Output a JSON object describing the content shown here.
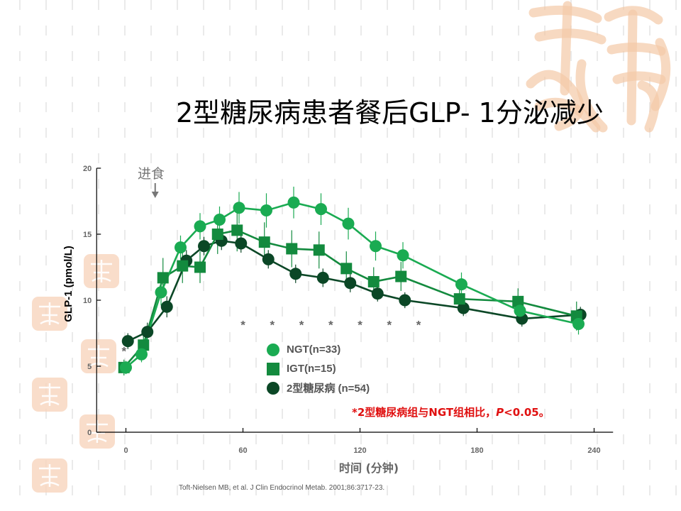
{
  "slide": {
    "title": "2型糖尿病患者餐后GLP- 1分泌减少",
    "citation": "Toft-Nielsen MB, et al. J Clin Endocrinol Metab. 2001;86:3717-23.",
    "annotation_prefix": "*2型糖尿病组与NGT组相比，",
    "annotation_p": "P",
    "annotation_suffix": "<0.05。"
  },
  "chart_data": {
    "type": "line",
    "title": "",
    "xlabel": "时间 (分钟)",
    "ylabel": "GLP-1 (pmol/L)",
    "xlim": [
      -15,
      245
    ],
    "ylim": [
      0,
      20
    ],
    "xticks": [
      0,
      60,
      120,
      180,
      240
    ],
    "yticks": [
      0,
      5,
      10,
      15,
      20
    ],
    "meal_marker": {
      "label": "进食",
      "x": 15
    },
    "significance_x": [
      0,
      60,
      75,
      90,
      105,
      120,
      135,
      150
    ],
    "series": [
      {
        "name": "NGT(n=33)",
        "marker": "circle",
        "color": "#1aab52",
        "x": [
          0,
          8,
          18,
          28,
          38,
          48,
          58,
          72,
          86,
          100,
          114,
          128,
          142,
          172,
          202,
          232
        ],
        "y": [
          4.9,
          5.9,
          10.6,
          14.0,
          15.6,
          16.1,
          17.0,
          16.8,
          17.4,
          16.9,
          15.8,
          14.1,
          13.4,
          11.2,
          9.2,
          8.2
        ]
      },
      {
        "name": "IGT(n=15)",
        "marker": "square",
        "color": "#138a3e",
        "x": [
          -1,
          9,
          19,
          29,
          38,
          47,
          57,
          71,
          85,
          99,
          113,
          127,
          141,
          171,
          201,
          231
        ],
        "y": [
          4.9,
          6.6,
          11.7,
          12.6,
          12.5,
          15.0,
          15.3,
          14.4,
          13.9,
          13.8,
          12.4,
          11.4,
          11.8,
          10.1,
          9.9,
          8.8
        ]
      },
      {
        "name": "2型糖尿病 (n=54)",
        "marker": "circle",
        "color": "#0b4726",
        "x": [
          1,
          11,
          21,
          31,
          40,
          49,
          59,
          73,
          87,
          101,
          115,
          129,
          143,
          173,
          203,
          233
        ],
        "y": [
          6.9,
          7.6,
          9.5,
          13.0,
          14.1,
          14.5,
          14.3,
          13.1,
          12.0,
          11.7,
          11.3,
          10.5,
          10.0,
          9.4,
          8.6,
          8.9
        ]
      }
    ],
    "errors": [
      [
        0.5,
        0.6,
        1.0,
        0.9,
        1.0,
        1.0,
        1.2,
        1.3,
        1.2,
        1.2,
        1.2,
        1.1,
        1.0,
        0.9,
        0.9,
        0.8
      ],
      [
        0.6,
        0.8,
        1.5,
        1.3,
        1.2,
        1.5,
        1.6,
        1.5,
        1.4,
        1.4,
        1.3,
        1.1,
        1.1,
        1.0,
        1.0,
        1.1
      ],
      [
        0.6,
        0.7,
        0.8,
        0.8,
        0.7,
        0.7,
        0.7,
        0.7,
        0.7,
        0.7,
        0.7,
        0.6,
        0.6,
        0.6,
        0.6,
        0.6
      ]
    ]
  }
}
